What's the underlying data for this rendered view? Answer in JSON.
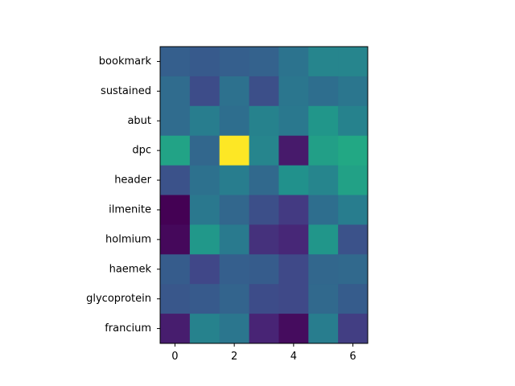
{
  "chart_data": {
    "type": "heatmap",
    "colormap": "viridis",
    "title": "",
    "xlabel": "",
    "ylabel": "",
    "rows": [
      "bookmark",
      "sustained",
      "abut",
      "dpc",
      "header",
      "ilmenite",
      "holmium",
      "haemek",
      "glycoprotein",
      "francium"
    ],
    "columns": [
      0,
      1,
      2,
      3,
      4,
      5,
      6
    ],
    "xticks": [
      0,
      2,
      4,
      6
    ],
    "value_range": [
      0,
      1
    ],
    "values": [
      [
        0.3,
        0.28,
        0.3,
        0.31,
        0.38,
        0.45,
        0.45
      ],
      [
        0.35,
        0.23,
        0.37,
        0.24,
        0.39,
        0.36,
        0.39
      ],
      [
        0.35,
        0.42,
        0.36,
        0.44,
        0.4,
        0.52,
        0.44
      ],
      [
        0.58,
        0.33,
        1.0,
        0.45,
        0.07,
        0.56,
        0.6
      ],
      [
        0.25,
        0.37,
        0.42,
        0.34,
        0.5,
        0.45,
        0.57
      ],
      [
        0.0,
        0.4,
        0.33,
        0.24,
        0.17,
        0.36,
        0.42
      ],
      [
        0.02,
        0.53,
        0.41,
        0.14,
        0.11,
        0.52,
        0.25
      ],
      [
        0.29,
        0.21,
        0.3,
        0.29,
        0.22,
        0.33,
        0.34
      ],
      [
        0.27,
        0.28,
        0.32,
        0.23,
        0.22,
        0.34,
        0.29
      ],
      [
        0.08,
        0.44,
        0.39,
        0.1,
        0.03,
        0.42,
        0.18
      ]
    ]
  }
}
